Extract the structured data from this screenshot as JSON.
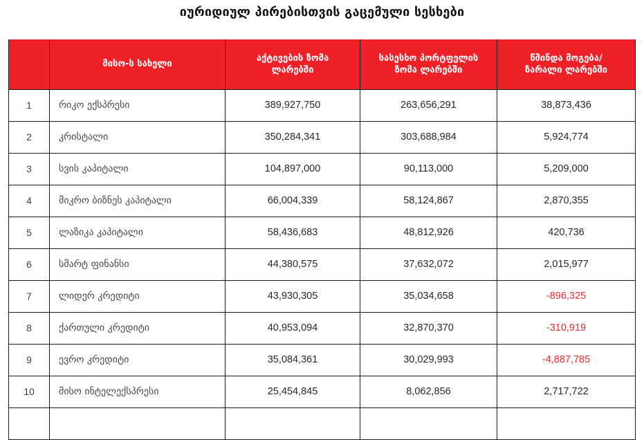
{
  "page": {
    "title": "იურიდიულ პირებისთვის გაცემული სესხები"
  },
  "colors": {
    "header_bg": "#ee2129",
    "negative_text": "#ed2c35",
    "border": "#1c1c1c"
  },
  "table": {
    "columns": [
      {
        "label": ""
      },
      {
        "label": "მისო-ს სახელი"
      },
      {
        "label": "აქტივების ზომა\nლარებში"
      },
      {
        "label": "სასესხო პორტფელის\nზომა ლარებში"
      },
      {
        "label": "წმინდა მოგება/\nზარალი ლარებში"
      }
    ],
    "rows": [
      {
        "index": "1",
        "name": "რიკო ექსპრესი",
        "assets": "389,927,750",
        "portfolio": "263,656,291",
        "profit": "38,873,436",
        "profit_negative": false
      },
      {
        "index": "2",
        "name": "კრისტალი",
        "assets": "350,284,341",
        "portfolio": "303,688,984",
        "profit": "5,924,774",
        "profit_negative": false
      },
      {
        "index": "3",
        "name": "სვის კაპიტალი",
        "assets": "104,897,000",
        "portfolio": "90,113,000",
        "profit": "5,209,000",
        "profit_negative": false
      },
      {
        "index": "4",
        "name": "მიკრო ბიზნეს კაპიტალი",
        "assets": "66,004,339",
        "portfolio": "58,124,867",
        "profit": "2,870,355",
        "profit_negative": false
      },
      {
        "index": "5",
        "name": "ლაზიკა კაპიტალი",
        "assets": "58,436,683",
        "portfolio": "48,812,926",
        "profit": "420,736",
        "profit_negative": false
      },
      {
        "index": "6",
        "name": "სმარტ ფინანსი",
        "assets": "44,380,575",
        "portfolio": "37,632,072",
        "profit": "2,015,977",
        "profit_negative": false
      },
      {
        "index": "7",
        "name": "ლიდერ კრედიტი",
        "assets": "43,930,305",
        "portfolio": "35,034,658",
        "profit": "-896,325",
        "profit_negative": true
      },
      {
        "index": "8",
        "name": "ქართული კრედიტი",
        "assets": "40,953,094",
        "portfolio": "32,870,370",
        "profit": "-310,919",
        "profit_negative": true
      },
      {
        "index": "9",
        "name": "ევრო კრედიტი",
        "assets": "35,084,361",
        "portfolio": "30,029,993",
        "profit": "-4,887,785",
        "profit_negative": true
      },
      {
        "index": "10",
        "name": "მისო ინტელექსპრესი",
        "assets": "25,454,845",
        "portfolio": "8,062,856",
        "profit": "2,717,722",
        "profit_negative": false
      }
    ]
  },
  "chart_data": {
    "type": "table",
    "title": "იურიდიულ პირებისთვის გაცემული სესხები",
    "columns": [
      "#",
      "მისო-ს სახელი",
      "აქტივების ზომა ლარებში",
      "სასესხო პორტფელის ზომა ლარებში",
      "წმინდა მოგება/ზარალი ლარებში"
    ],
    "rows": [
      [
        1,
        "რიკო ექსპრესი",
        389927750,
        263656291,
        38873436
      ],
      [
        2,
        "კრისტალი",
        350284341,
        303688984,
        5924774
      ],
      [
        3,
        "სვის კაპიტალი",
        104897000,
        90113000,
        5209000
      ],
      [
        4,
        "მიკრო ბიზნეს კაპიტალი",
        66004339,
        58124867,
        2870355
      ],
      [
        5,
        "ლაზიკა კაპიტალი",
        58436683,
        48812926,
        420736
      ],
      [
        6,
        "სმარტ ფინანსი",
        44380575,
        37632072,
        2015977
      ],
      [
        7,
        "ლიდერ კრედიტი",
        43930305,
        35034658,
        -896325
      ],
      [
        8,
        "ქართული კრედიტი",
        40953094,
        32870370,
        -310919
      ],
      [
        9,
        "ევრო კრედიტი",
        35084361,
        30029993,
        -4887785
      ],
      [
        10,
        "მისო ინტელექსპრესი",
        25454845,
        8062856,
        2717722
      ]
    ],
    "layout": {
      "header_style": "red-banner",
      "negative_values_colored": true,
      "grid": true
    }
  }
}
